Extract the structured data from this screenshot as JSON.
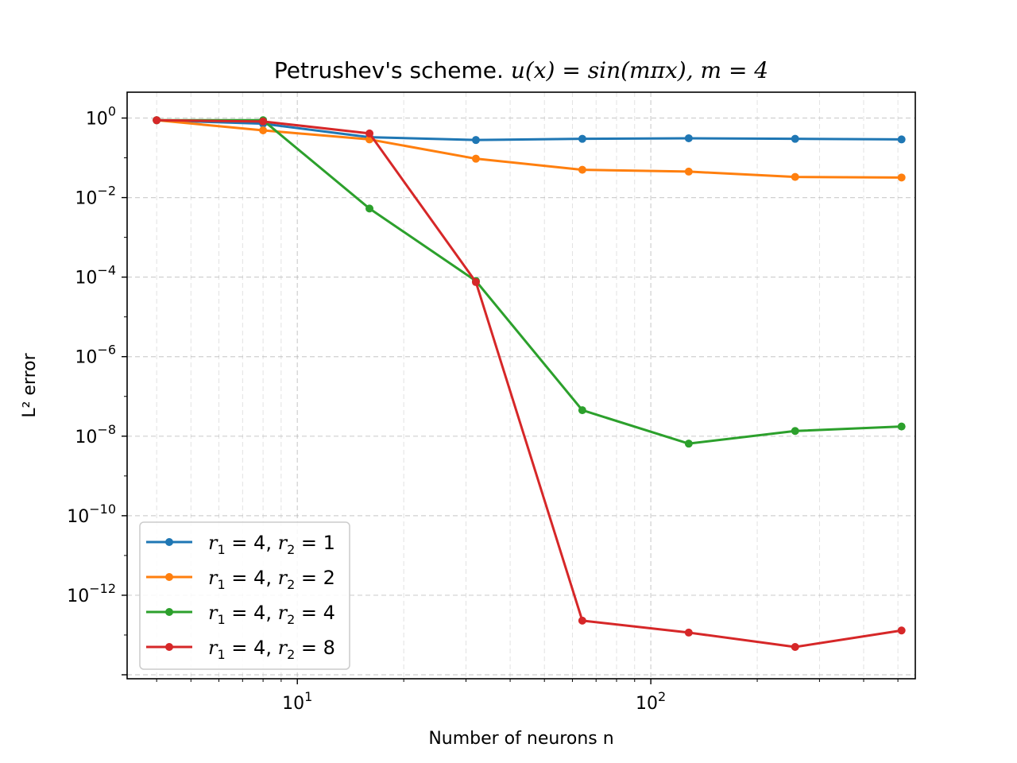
{
  "chart_data": {
    "type": "line",
    "title_prefix": "Petrushev's scheme.",
    "title_math": "u(x) = sin(mπx), m = 4",
    "xlabel": "Number of neurons n",
    "ylabel": "L² error",
    "xscale": "log",
    "yscale": "log",
    "xlim": [
      3.3,
      560
    ],
    "ylim_exp": [
      -14.1,
      0.65
    ],
    "x_major_ticks": [
      {
        "value": 10,
        "base": "10",
        "exp": "1"
      },
      {
        "value": 100,
        "base": "10",
        "exp": "2"
      }
    ],
    "y_major_ticks": [
      {
        "value": 1,
        "base": "10",
        "exp": "0"
      },
      {
        "value": 0.01,
        "base": "10",
        "exp": "−2"
      },
      {
        "value": 0.0001,
        "base": "10",
        "exp": "−4"
      },
      {
        "value": 1e-06,
        "base": "10",
        "exp": "−6"
      },
      {
        "value": 1e-08,
        "base": "10",
        "exp": "−8"
      },
      {
        "value": 1e-10,
        "base": "10",
        "exp": "−10"
      },
      {
        "value": 1e-12,
        "base": "10",
        "exp": "−12"
      }
    ],
    "grid": true,
    "legend_position": "lower-left",
    "x": [
      4,
      8,
      16,
      32,
      64,
      128,
      256,
      512
    ],
    "series": [
      {
        "name": "r₁ = 4, r₂ = 1",
        "r1": "4",
        "r2": "1",
        "color": "#1f77b4",
        "values": [
          0.88,
          0.72,
          0.33,
          0.28,
          0.3,
          0.31,
          0.3,
          0.29
        ]
      },
      {
        "name": "r₁ = 4, r₂ = 2",
        "r1": "4",
        "r2": "2",
        "color": "#ff7f0e",
        "values": [
          0.88,
          0.49,
          0.29,
          0.095,
          0.05,
          0.045,
          0.033,
          0.032
        ]
      },
      {
        "name": "r₁ = 4, r₂ = 4",
        "r1": "4",
        "r2": "4",
        "color": "#2ca02c",
        "values": [
          0.88,
          0.88,
          0.0053,
          8e-05,
          4.5e-08,
          6.5e-09,
          1.35e-08,
          1.75e-08
        ]
      },
      {
        "name": "r₁ = 4, r₂ = 8",
        "r1": "4",
        "r2": "8",
        "color": "#d62728",
        "values": [
          0.88,
          0.82,
          0.41,
          7.5e-05,
          2.3e-13,
          1.15e-13,
          5e-14,
          1.3e-13
        ]
      }
    ]
  }
}
